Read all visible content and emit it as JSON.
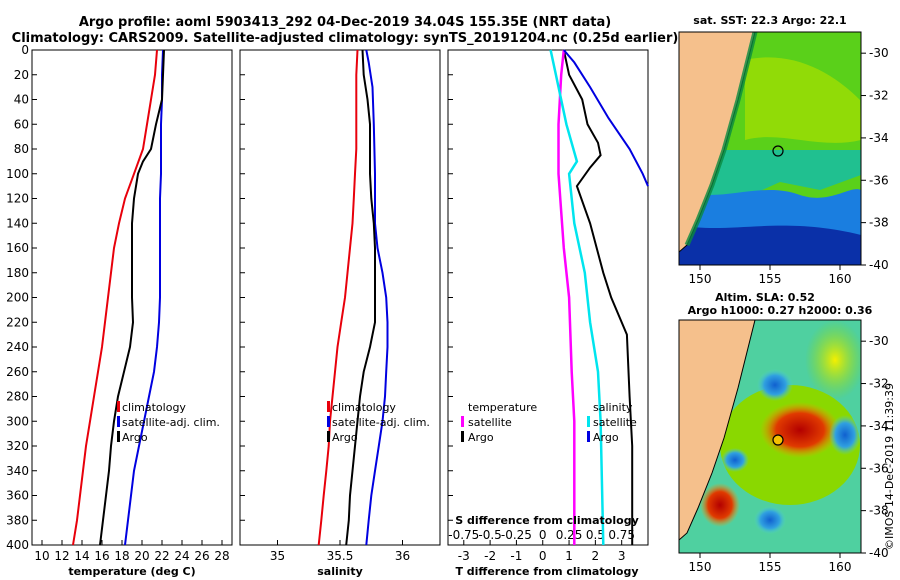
{
  "header": {
    "line1": "Argo profile: aoml 5903413_292 04-Dec-2019 34.04S 155.35E (NRT data)",
    "line2": "Climatology: CARS2009. Satellite-adjusted climatology: synTS_20191204.nc (0.25d earlier)"
  },
  "colors": {
    "climatology": "#e8000b",
    "satellite": "#0000e0",
    "argo": "#000000",
    "temp_diff": "#ff00ff",
    "sal_diff": "#00e5ee",
    "land": "#f5c08c"
  },
  "chart_data": [
    {
      "type": "line",
      "name": "temperature-profile",
      "xlabel": "temperature (deg C)",
      "ylabel": "depth",
      "xlim": [
        9,
        29
      ],
      "ylim": [
        400,
        0
      ],
      "xticks": [
        10,
        12,
        14,
        16,
        18,
        20,
        22,
        24,
        26,
        28
      ],
      "yticks": [
        0,
        20,
        40,
        60,
        80,
        100,
        120,
        140,
        160,
        180,
        200,
        220,
        240,
        260,
        280,
        300,
        320,
        340,
        360,
        380,
        400
      ],
      "series": [
        {
          "name": "climatology",
          "color": "#e8000b",
          "points": [
            [
              21.5,
              0
            ],
            [
              21.3,
              20
            ],
            [
              20.9,
              40
            ],
            [
              20.5,
              60
            ],
            [
              20.1,
              80
            ],
            [
              19.2,
              100
            ],
            [
              18.3,
              120
            ],
            [
              17.7,
              140
            ],
            [
              17.2,
              160
            ],
            [
              16.9,
              180
            ],
            [
              16.6,
              200
            ],
            [
              16.3,
              220
            ],
            [
              16.0,
              240
            ],
            [
              15.6,
              260
            ],
            [
              15.2,
              280
            ],
            [
              14.8,
              300
            ],
            [
              14.4,
              320
            ],
            [
              14.1,
              340
            ],
            [
              13.8,
              360
            ],
            [
              13.5,
              380
            ],
            [
              13.1,
              400
            ]
          ]
        },
        {
          "name": "satellite-adj. clim.",
          "color": "#0000e0",
          "points": [
            [
              22.1,
              0
            ],
            [
              22.0,
              20
            ],
            [
              22.0,
              40
            ],
            [
              21.9,
              60
            ],
            [
              21.9,
              80
            ],
            [
              21.9,
              100
            ],
            [
              21.8,
              120
            ],
            [
              21.8,
              140
            ],
            [
              21.8,
              160
            ],
            [
              21.8,
              180
            ],
            [
              21.8,
              200
            ],
            [
              21.7,
              220
            ],
            [
              21.5,
              240
            ],
            [
              21.2,
              260
            ],
            [
              20.7,
              280
            ],
            [
              20.2,
              300
            ],
            [
              19.7,
              320
            ],
            [
              19.2,
              340
            ],
            [
              18.9,
              360
            ],
            [
              18.6,
              380
            ],
            [
              18.3,
              400
            ]
          ]
        },
        {
          "name": "Argo",
          "color": "#000000",
          "points": [
            [
              22.2,
              0
            ],
            [
              22.1,
              20
            ],
            [
              22.0,
              40
            ],
            [
              21.4,
              60
            ],
            [
              20.9,
              80
            ],
            [
              20.1,
              90
            ],
            [
              19.6,
              100
            ],
            [
              19.2,
              120
            ],
            [
              19.0,
              140
            ],
            [
              19.0,
              160
            ],
            [
              19.0,
              180
            ],
            [
              19.0,
              200
            ],
            [
              19.1,
              220
            ],
            [
              18.8,
              240
            ],
            [
              18.2,
              260
            ],
            [
              17.6,
              280
            ],
            [
              17.2,
              300
            ],
            [
              16.9,
              320
            ],
            [
              16.7,
              340
            ],
            [
              16.4,
              360
            ],
            [
              16.1,
              380
            ],
            [
              15.8,
              400
            ]
          ]
        }
      ],
      "legend": [
        "climatology",
        "satellite-adj. clim.",
        "Argo"
      ]
    },
    {
      "type": "line",
      "name": "salinity-profile",
      "xlabel": "salinity",
      "ylabel": "depth",
      "xlim": [
        34.7,
        36.3
      ],
      "ylim": [
        400,
        0
      ],
      "xticks": [
        35,
        35.5,
        36
      ],
      "series": [
        {
          "name": "climatology",
          "color": "#e8000b",
          "points": [
            [
              35.64,
              0
            ],
            [
              35.63,
              20
            ],
            [
              35.63,
              40
            ],
            [
              35.63,
              60
            ],
            [
              35.63,
              80
            ],
            [
              35.62,
              100
            ],
            [
              35.61,
              120
            ],
            [
              35.6,
              140
            ],
            [
              35.58,
              160
            ],
            [
              35.56,
              180
            ],
            [
              35.54,
              200
            ],
            [
              35.51,
              220
            ],
            [
              35.48,
              240
            ],
            [
              35.46,
              260
            ],
            [
              35.44,
              280
            ],
            [
              35.42,
              300
            ],
            [
              35.41,
              320
            ],
            [
              35.39,
              340
            ],
            [
              35.37,
              360
            ],
            [
              35.35,
              380
            ],
            [
              35.33,
              400
            ]
          ]
        },
        {
          "name": "satellite-adj. clim.",
          "color": "#0000e0",
          "points": [
            [
              35.71,
              0
            ],
            [
              35.73,
              10
            ],
            [
              35.76,
              30
            ],
            [
              35.77,
              60
            ],
            [
              35.78,
              100
            ],
            [
              35.78,
              140
            ],
            [
              35.8,
              160
            ],
            [
              35.84,
              180
            ],
            [
              35.87,
              200
            ],
            [
              35.88,
              220
            ],
            [
              35.88,
              240
            ],
            [
              35.87,
              260
            ],
            [
              35.86,
              280
            ],
            [
              35.84,
              300
            ],
            [
              35.81,
              320
            ],
            [
              35.78,
              340
            ],
            [
              35.75,
              360
            ],
            [
              35.73,
              380
            ],
            [
              35.71,
              400
            ]
          ]
        },
        {
          "name": "Argo",
          "color": "#000000",
          "points": [
            [
              35.68,
              0
            ],
            [
              35.69,
              20
            ],
            [
              35.72,
              40
            ],
            [
              35.74,
              60
            ],
            [
              35.74,
              80
            ],
            [
              35.74,
              100
            ],
            [
              35.75,
              120
            ],
            [
              35.77,
              140
            ],
            [
              35.78,
              160
            ],
            [
              35.78,
              180
            ],
            [
              35.78,
              200
            ],
            [
              35.78,
              220
            ],
            [
              35.74,
              240
            ],
            [
              35.69,
              260
            ],
            [
              35.66,
              280
            ],
            [
              35.64,
              300
            ],
            [
              35.62,
              320
            ],
            [
              35.6,
              340
            ],
            [
              35.58,
              360
            ],
            [
              35.57,
              380
            ],
            [
              35.55,
              400
            ]
          ]
        }
      ],
      "legend": [
        "climatology",
        "satellite-adj. clim.",
        "Argo"
      ]
    },
    {
      "type": "line",
      "name": "difference-profile",
      "xlabel": "T difference from climatology",
      "toplabel": "S difference from climatology",
      "xlim": [
        -3.6,
        4.0
      ],
      "ylim": [
        400,
        0
      ],
      "xticks": [
        -3,
        -2,
        -1,
        0,
        1,
        2,
        3
      ],
      "sticks": [
        "-0.75",
        "-0.5",
        "-0.25",
        "0",
        "0.25",
        "0.5",
        "0.75"
      ],
      "series": [
        {
          "name": "temperature Argo",
          "color": "#000000",
          "points": [
            [
              0.8,
              0
            ],
            [
              1.0,
              20
            ],
            [
              1.5,
              40
            ],
            [
              1.7,
              60
            ],
            [
              2.1,
              75
            ],
            [
              2.2,
              85
            ],
            [
              1.8,
              95
            ],
            [
              1.3,
              110
            ],
            [
              1.8,
              140
            ],
            [
              2.3,
              180
            ],
            [
              2.6,
              200
            ],
            [
              3.2,
              230
            ],
            [
              3.3,
              280
            ],
            [
              3.4,
              320
            ],
            [
              3.4,
              400
            ]
          ]
        },
        {
          "name": "temperature satellite",
          "color": "#ff00ff",
          "points": [
            [
              0.8,
              0
            ],
            [
              0.7,
              20
            ],
            [
              0.6,
              60
            ],
            [
              0.6,
              100
            ],
            [
              0.8,
              160
            ],
            [
              1.0,
              200
            ],
            [
              1.1,
              260
            ],
            [
              1.2,
              300
            ],
            [
              1.2,
              400
            ]
          ]
        },
        {
          "name": "salinity Argo",
          "color": "#0000e0",
          "points": [
            [
              0.8,
              0
            ],
            [
              1.2,
              10
            ],
            [
              1.8,
              30
            ],
            [
              2.5,
              55
            ],
            [
              3.3,
              80
            ],
            [
              3.8,
              100
            ],
            [
              4.0,
              110
            ]
          ]
        },
        {
          "name": "salinity satellite",
          "color": "#00e5ee",
          "points": [
            [
              0.3,
              0
            ],
            [
              0.5,
              20
            ],
            [
              0.9,
              60
            ],
            [
              1.3,
              90
            ],
            [
              1.0,
              100
            ],
            [
              1.2,
              140
            ],
            [
              1.6,
              180
            ],
            [
              1.8,
              220
            ],
            [
              2.1,
              260
            ],
            [
              2.2,
              300
            ],
            [
              2.3,
              400
            ]
          ]
        }
      ],
      "legend_left": [
        "temperature",
        "satellite",
        "Argo"
      ],
      "legend_right": [
        "salinity",
        "satellite",
        "Argo"
      ]
    }
  ],
  "maps": {
    "sst": {
      "title": "sat. SST: 22.3 Argo: 22.1",
      "lon_ticks": [
        "150",
        "155",
        "160"
      ],
      "lat_ticks": [
        "-30",
        "-32",
        "-34",
        "-36",
        "-38",
        "-40"
      ]
    },
    "sla": {
      "title1": "Altim. SLA: 0.52",
      "title2": "Argo h1000: 0.27 h2000: 0.36",
      "lon_ticks": [
        "150",
        "155",
        "160"
      ],
      "lat_ticks": [
        "-30",
        "-32",
        "-34",
        "-36",
        "-38",
        "-40"
      ]
    }
  },
  "credit": "©IMOS 14-Dec-2019 11:39:39"
}
